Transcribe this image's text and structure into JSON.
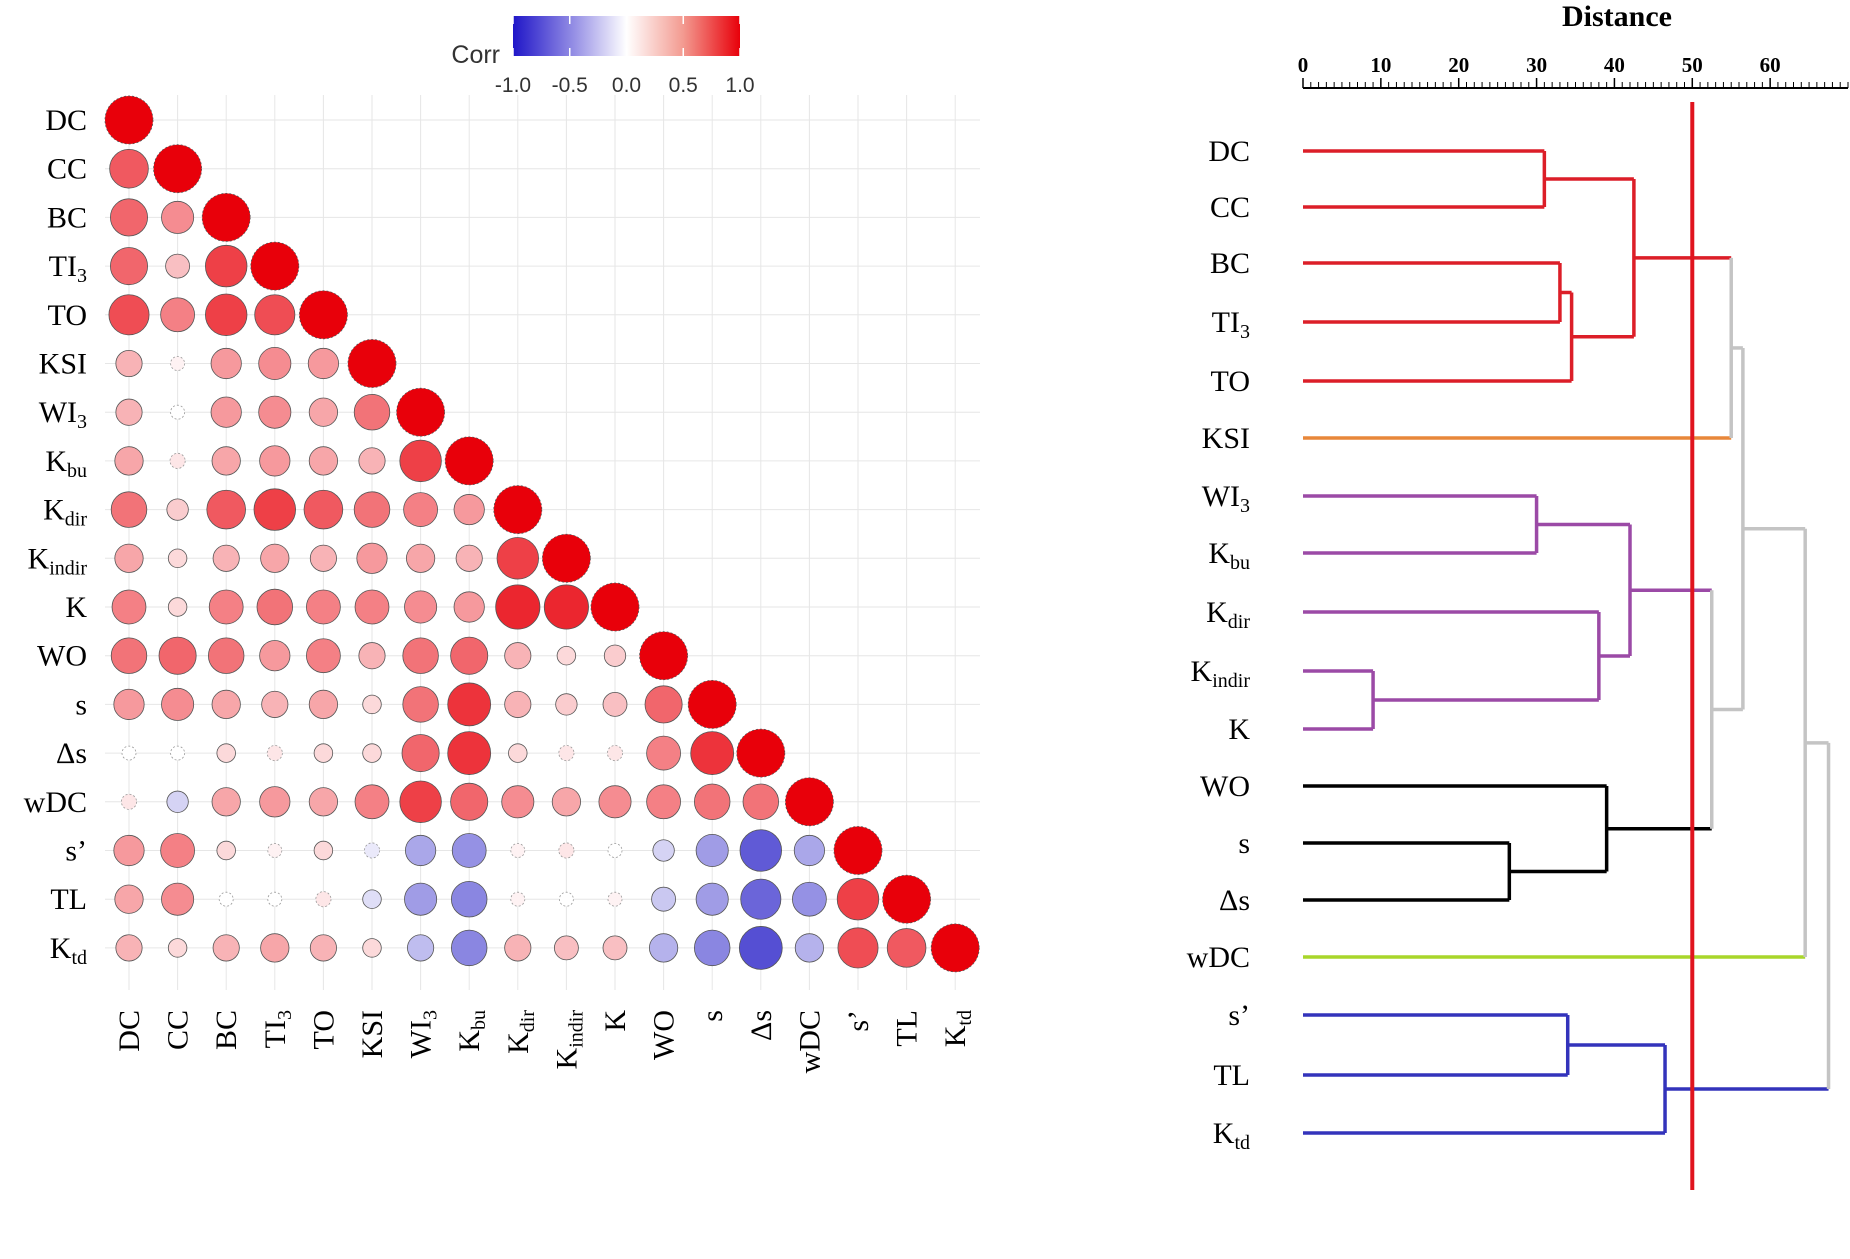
{
  "chart_data": [
    {
      "type": "heatmap",
      "subtype": "lower-triangle correlation matrix (circle glyphs)",
      "variables": [
        {
          "base": "DC",
          "sub": ""
        },
        {
          "base": "CC",
          "sub": ""
        },
        {
          "base": "BC",
          "sub": ""
        },
        {
          "base": "TI",
          "sub": "3"
        },
        {
          "base": "TO",
          "sub": ""
        },
        {
          "base": "KSI",
          "sub": ""
        },
        {
          "base": "WI",
          "sub": "3"
        },
        {
          "base": "K",
          "sub": "bu"
        },
        {
          "base": "K",
          "sub": "dir"
        },
        {
          "base": "K",
          "sub": "indir"
        },
        {
          "base": "K",
          "sub": ""
        },
        {
          "base": "WO",
          "sub": ""
        },
        {
          "base": "s",
          "sub": ""
        },
        {
          "base": "Δs",
          "sub": ""
        },
        {
          "base": "wDC",
          "sub": ""
        },
        {
          "base": "s’",
          "sub": ""
        },
        {
          "base": "TL",
          "sub": ""
        },
        {
          "base": "K",
          "sub": "td"
        }
      ],
      "matrix": [
        [
          1.0
        ],
        [
          0.65,
          1.0
        ],
        [
          0.6,
          0.45,
          1.0
        ],
        [
          0.6,
          0.25,
          0.75,
          1.0
        ],
        [
          0.7,
          0.5,
          0.75,
          0.7,
          1.0
        ],
        [
          0.3,
          0.05,
          0.4,
          0.45,
          0.4,
          1.0
        ],
        [
          0.3,
          0.0,
          0.4,
          0.45,
          0.35,
          0.55,
          1.0
        ],
        [
          0.35,
          0.1,
          0.35,
          0.4,
          0.35,
          0.3,
          0.75,
          1.0
        ],
        [
          0.55,
          0.2,
          0.65,
          0.75,
          0.65,
          0.55,
          0.5,
          0.4,
          1.0
        ],
        [
          0.35,
          0.15,
          0.3,
          0.35,
          0.3,
          0.4,
          0.35,
          0.3,
          0.75,
          1.0
        ],
        [
          0.5,
          0.15,
          0.5,
          0.55,
          0.5,
          0.5,
          0.45,
          0.4,
          0.85,
          0.85,
          1.0
        ],
        [
          0.55,
          0.6,
          0.55,
          0.4,
          0.5,
          0.3,
          0.55,
          0.6,
          0.3,
          0.15,
          0.2,
          1.0
        ],
        [
          0.4,
          0.45,
          0.35,
          0.3,
          0.35,
          0.15,
          0.55,
          0.8,
          0.3,
          0.2,
          0.25,
          0.6,
          1.0
        ],
        [
          0.0,
          0.0,
          0.15,
          0.1,
          0.15,
          0.15,
          0.6,
          0.8,
          0.15,
          0.1,
          0.1,
          0.5,
          0.8,
          1.0
        ],
        [
          0.1,
          -0.2,
          0.35,
          0.4,
          0.35,
          0.5,
          0.75,
          0.6,
          0.45,
          0.35,
          0.45,
          0.5,
          0.55,
          0.55,
          1.0
        ],
        [
          0.4,
          0.5,
          0.15,
          0.05,
          0.15,
          -0.1,
          -0.4,
          -0.5,
          0.05,
          0.1,
          0.0,
          -0.2,
          -0.45,
          -0.75,
          -0.4,
          1.0
        ],
        [
          0.35,
          0.45,
          0.0,
          0.0,
          0.1,
          -0.15,
          -0.45,
          -0.55,
          0.05,
          0.0,
          0.05,
          -0.25,
          -0.45,
          -0.7,
          -0.5,
          0.75,
          1.0
        ],
        [
          0.3,
          0.15,
          0.3,
          0.35,
          0.3,
          0.15,
          -0.3,
          -0.55,
          0.3,
          0.25,
          0.25,
          -0.35,
          -0.55,
          -0.8,
          -0.35,
          0.7,
          0.65,
          1.0
        ]
      ],
      "colorbar": {
        "title": "Corr",
        "ticks": [
          "-1.0",
          "-0.5",
          "0.0",
          "0.5",
          "1.0"
        ],
        "range": [
          -1,
          1
        ]
      },
      "colors": {
        "negative": "#2b23c8",
        "zero": "#ffffff",
        "positive": "#e8000a"
      }
    },
    {
      "type": "dendrogram",
      "title": "Distance",
      "orientation": "horizontal",
      "axis_range": [
        0,
        70
      ],
      "ticks": [
        "0",
        "10",
        "20",
        "30",
        "40",
        "50",
        "60"
      ],
      "tick_values": [
        0,
        10,
        20,
        30,
        40,
        50,
        60
      ],
      "cut_height": 50,
      "cut_color": "#e0141e",
      "leaves": [
        {
          "base": "DC",
          "sub": "",
          "cluster": "red"
        },
        {
          "base": "CC",
          "sub": "",
          "cluster": "red"
        },
        {
          "base": "BC",
          "sub": "",
          "cluster": "red"
        },
        {
          "base": "TI",
          "sub": "3",
          "cluster": "red"
        },
        {
          "base": "TO",
          "sub": "",
          "cluster": "red"
        },
        {
          "base": "KSI",
          "sub": "",
          "cluster": "orange"
        },
        {
          "base": "WI",
          "sub": "3",
          "cluster": "purple"
        },
        {
          "base": "K",
          "sub": "bu",
          "cluster": "purple"
        },
        {
          "base": "K",
          "sub": "dir",
          "cluster": "purple"
        },
        {
          "base": "K",
          "sub": "indir",
          "cluster": "purple"
        },
        {
          "base": "K",
          "sub": "",
          "cluster": "purple"
        },
        {
          "base": "WO",
          "sub": "",
          "cluster": "black"
        },
        {
          "base": "s",
          "sub": "",
          "cluster": "black"
        },
        {
          "base": "Δs",
          "sub": "",
          "cluster": "black"
        },
        {
          "base": "wDC",
          "sub": "",
          "cluster": "green"
        },
        {
          "base": "s’",
          "sub": "",
          "cluster": "blue"
        },
        {
          "base": "TL",
          "sub": "",
          "cluster": "blue"
        },
        {
          "base": "K",
          "sub": "td",
          "cluster": "blue"
        }
      ],
      "cluster_colors": {
        "red": "#dc1e28",
        "orange": "#e8873a",
        "purple": "#9b4aa6",
        "black": "#000000",
        "green": "#a8d62a",
        "blue": "#3333bb",
        "gray": "#c4c4c4"
      },
      "merges": [
        {
          "id": "m1",
          "children": [
            "DC",
            "CC"
          ],
          "height": 31,
          "color": "red"
        },
        {
          "id": "m2",
          "children": [
            "BC",
            "TI3"
          ],
          "height": 33,
          "color": "red"
        },
        {
          "id": "m3",
          "children": [
            "m2",
            "TO"
          ],
          "height": 34.5,
          "color": "red"
        },
        {
          "id": "m4",
          "children": [
            "m1",
            "m3"
          ],
          "height": 42.5,
          "color": "red"
        },
        {
          "id": "m5",
          "children": [
            "Kindir",
            "K"
          ],
          "height": 9,
          "color": "purple"
        },
        {
          "id": "m6",
          "children": [
            "WI3",
            "Kbu"
          ],
          "height": 30,
          "color": "purple"
        },
        {
          "id": "m7",
          "children": [
            "Kdir",
            "m5"
          ],
          "height": 38,
          "color": "purple"
        },
        {
          "id": "m8",
          "children": [
            "m6",
            "m7"
          ],
          "height": 42,
          "color": "purple"
        },
        {
          "id": "m9",
          "children": [
            "s",
            "Δs"
          ],
          "height": 26.5,
          "color": "black"
        },
        {
          "id": "m10",
          "children": [
            "WO",
            "m9"
          ],
          "height": 39,
          "color": "black"
        },
        {
          "id": "m11",
          "children": [
            "TL",
            "s’"
          ],
          "height": 34,
          "color": "blue"
        },
        {
          "id": "m12",
          "children": [
            "m11",
            "Ktd"
          ],
          "height": 46.5,
          "color": "blue"
        },
        {
          "id": "m13",
          "children": [
            "m4",
            "KSI"
          ],
          "height": 55,
          "color": "gray"
        },
        {
          "id": "m14",
          "children": [
            "m8",
            "m10"
          ],
          "height": 52.5,
          "color": "gray"
        },
        {
          "id": "m15",
          "children": [
            "m13",
            "m14"
          ],
          "height": 56.5,
          "color": "gray"
        },
        {
          "id": "m16",
          "children": [
            "m15",
            "wDC"
          ],
          "height": 64.5,
          "color": "gray"
        },
        {
          "id": "m17",
          "children": [
            "m16",
            "m12"
          ],
          "height": 67.5,
          "color": "gray"
        }
      ]
    }
  ]
}
